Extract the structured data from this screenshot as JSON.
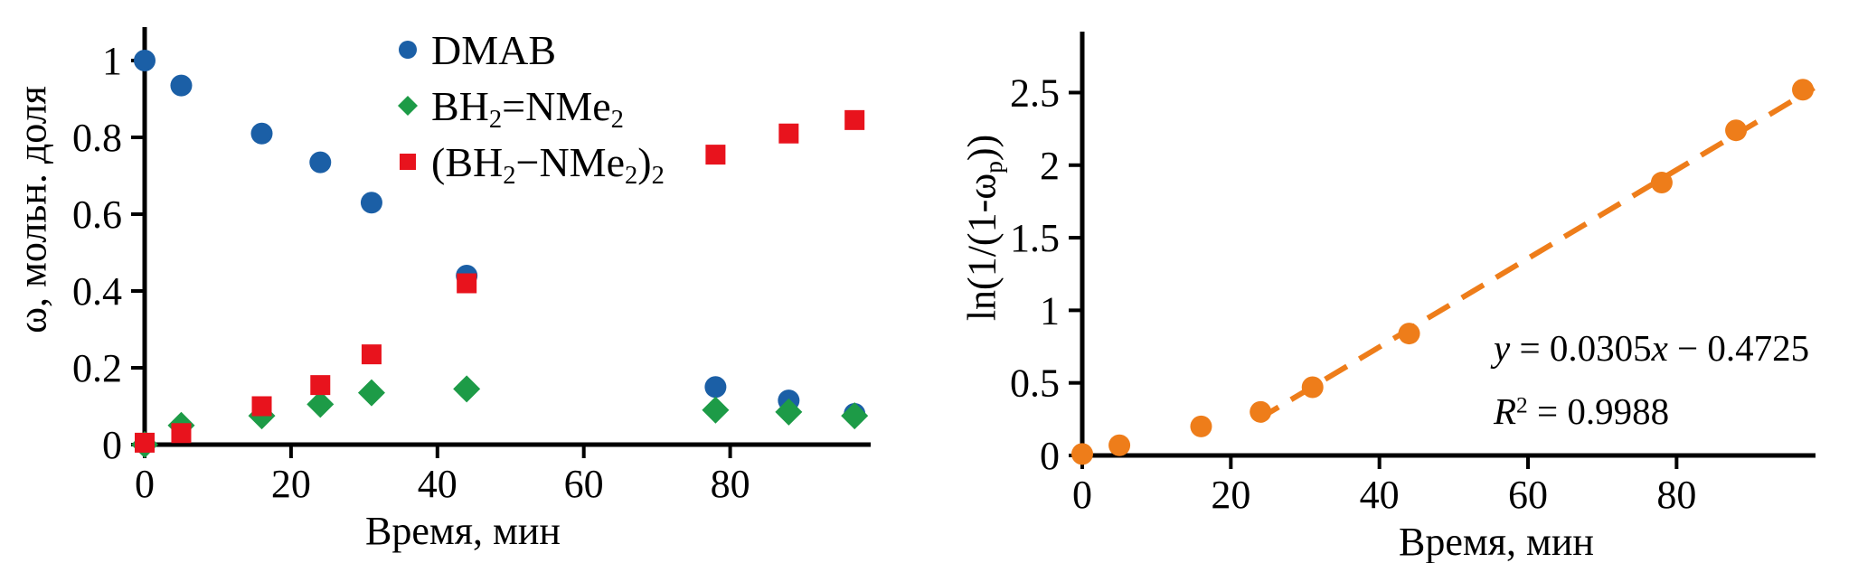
{
  "figure": {
    "background": "#ffffff",
    "colors": {
      "dmab_blue": "#1b5fa6",
      "aminoborane_green": "#1d9b47",
      "cyclodiborazane_red": "#e8131d",
      "fit_orange": "#ee7d1a",
      "axis_black": "#000000"
    }
  },
  "chart_data": [
    {
      "type": "scatter",
      "title": "",
      "xlabel": "Время, мин",
      "ylabel": "ω, мольн. доля",
      "ylabel_segments": [
        {
          "t": "ω, мольн. доля"
        }
      ],
      "x": [
        0,
        5,
        16,
        24,
        31,
        44,
        78,
        88,
        97
      ],
      "series": [
        {
          "name": "DMAB",
          "label_segments": [
            {
              "t": "DMAB"
            }
          ],
          "marker": "circle",
          "color": "#1b5fa6",
          "values": [
            1.0,
            0.935,
            0.81,
            0.735,
            0.63,
            0.44,
            0.15,
            0.115,
            0.08
          ]
        },
        {
          "name": "BH2=NMe2",
          "label_segments": [
            {
              "t": "BH"
            },
            {
              "t": "2",
              "sub": true
            },
            {
              "t": "=NMe"
            },
            {
              "t": "2",
              "sub": true
            }
          ],
          "marker": "diamond",
          "color": "#1d9b47",
          "values": [
            0.0,
            0.05,
            0.075,
            0.105,
            0.135,
            0.145,
            0.09,
            0.085,
            0.075
          ]
        },
        {
          "name": "(BH2−NMe2)2",
          "label_segments": [
            {
              "t": "(BH"
            },
            {
              "t": "2",
              "sub": true
            },
            {
              "t": "−NMe"
            },
            {
              "t": "2",
              "sub": true
            },
            {
              "t": ")"
            },
            {
              "t": "2",
              "sub": true
            }
          ],
          "marker": "square",
          "color": "#e8131d",
          "values": [
            0.005,
            0.03,
            0.1,
            0.155,
            0.235,
            0.42,
            0.755,
            0.81,
            0.845
          ]
        }
      ],
      "xticks": [
        0,
        20,
        40,
        60,
        80
      ],
      "yticks": [
        0,
        0.2,
        0.4,
        0.6,
        0.8,
        1
      ],
      "ytick_labels": [
        "0",
        "0.2",
        "0.4",
        "0.6",
        "0.8",
        "1"
      ],
      "xlim": [
        0,
        99.2
      ],
      "ylim": [
        0,
        1.087
      ],
      "grid": false,
      "legend_position": "inside-top-right"
    },
    {
      "type": "scatter",
      "title": "",
      "xlabel": "Время, мин",
      "ylabel": "ln(1/(1-ωp))",
      "ylabel_segments": [
        {
          "t": "ln(1/(1-ω"
        },
        {
          "t": "p",
          "sub": true
        },
        {
          "t": "))"
        }
      ],
      "x": [
        0,
        5,
        16,
        24,
        31,
        44,
        78,
        88,
        97
      ],
      "series": [
        {
          "name": "ln(1/(1-ωp))",
          "marker": "circle",
          "color": "#ee7d1a",
          "values": [
            0.01,
            0.07,
            0.2,
            0.3,
            0.47,
            0.84,
            1.88,
            2.24,
            2.52
          ]
        }
      ],
      "trendline": {
        "slope": 0.0305,
        "intercept": -0.4725,
        "x_start": 23.5,
        "x_end": 98.5,
        "style": "dashed",
        "color": "#ee7d1a",
        "equation": "y = 0.0305x − 0.4725",
        "r_squared": "R² = 0.9988",
        "equation_segments": [
          {
            "t": "y",
            "i": true
          },
          {
            "t": " = 0.0305"
          },
          {
            "t": "x",
            "i": true
          },
          {
            "t": " − 0.4725"
          }
        ],
        "r2_segments": [
          {
            "t": "R",
            "i": true
          },
          {
            "t": "2",
            "sup": true
          },
          {
            "t": " = 0.9988"
          }
        ]
      },
      "xticks": [
        0,
        20,
        40,
        60,
        80
      ],
      "yticks": [
        0,
        0.5,
        1,
        1.5,
        2,
        2.5
      ],
      "ytick_labels": [
        "0",
        "0.5",
        "1",
        "1.5",
        "2",
        "2.5"
      ],
      "xlim": [
        0,
        98.7
      ],
      "ylim": [
        0,
        2.92
      ],
      "grid": false,
      "legend_position": "none"
    }
  ]
}
